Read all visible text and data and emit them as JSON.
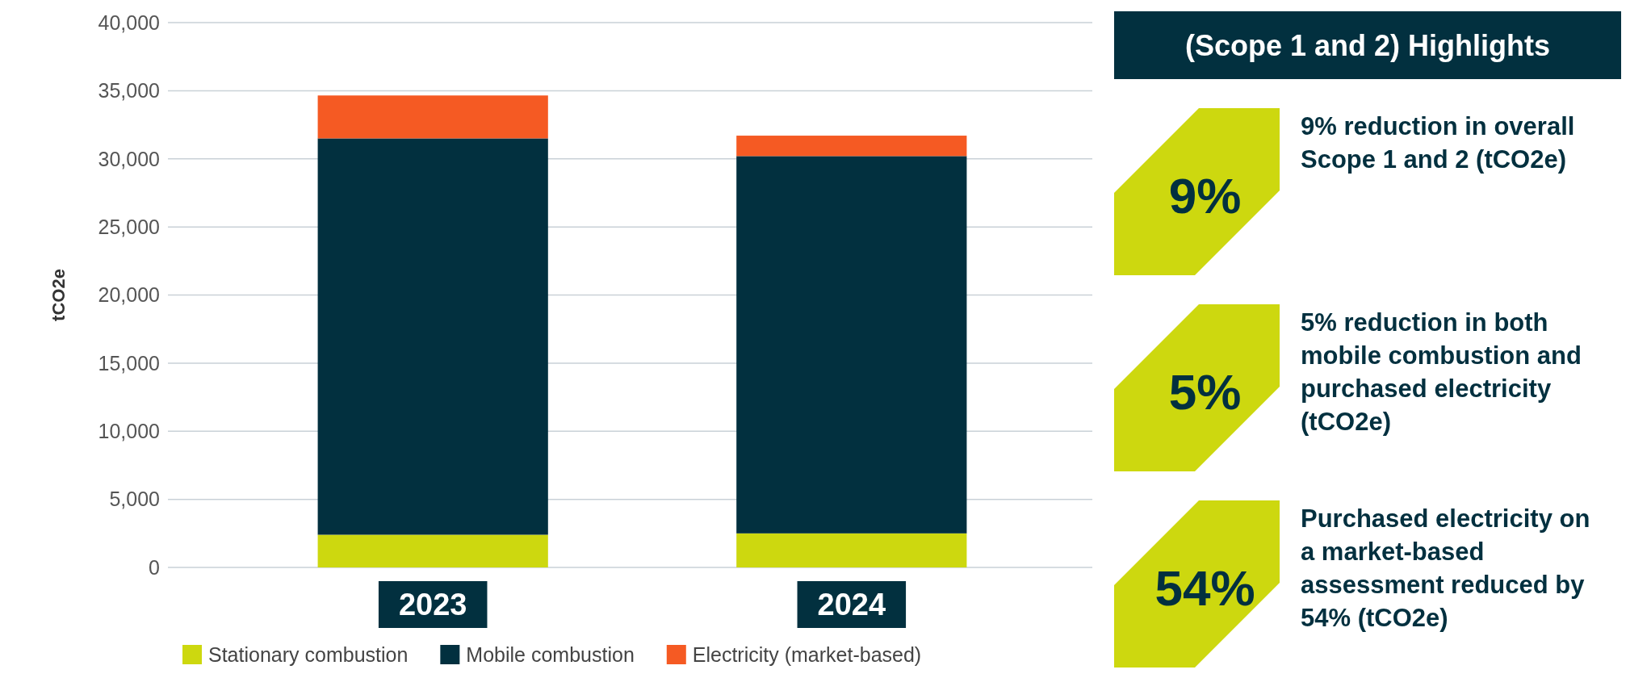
{
  "chart_data": [
    {
      "type": "bar",
      "stacked": true,
      "ylabel": "tCO2e",
      "categories": [
        "2023",
        "2024"
      ],
      "series": [
        {
          "name": "Stationary combustion",
          "color": "#cdd80f",
          "values": [
            2400,
            2500
          ]
        },
        {
          "name": "Mobile combustion",
          "color": "#02303f",
          "values": [
            29100,
            27700
          ]
        },
        {
          "name": "Electricity (market-based)",
          "color": "#f55a23",
          "values": [
            3150,
            1500
          ]
        }
      ],
      "ylim": [
        0,
        40000
      ],
      "yticks": [
        {
          "value": 0,
          "label": "0"
        },
        {
          "value": 5000,
          "label": "5,000"
        },
        {
          "value": 10000,
          "label": "10,000"
        },
        {
          "value": 15000,
          "label": "15,000"
        },
        {
          "value": 20000,
          "label": "20,000"
        },
        {
          "value": 25000,
          "label": "25,000"
        },
        {
          "value": 30000,
          "label": "30,000"
        },
        {
          "value": 35000,
          "label": "35,000"
        },
        {
          "value": 40000,
          "label": "40,000"
        }
      ],
      "grid": "y",
      "legend": "bottom"
    },
    {
      "type": "other",
      "title": "(Scope 1 and 2) Highlights",
      "annotations": [
        "9%",
        "9% reduction in overall Scope 1 and 2 (tCO2e)",
        "5%",
        "5% reduction in both mobile combustion and purchased electricity (tCO2e)",
        "54%",
        "Purchased electricity on a market-based assessment reduced by 54% (tCO2e)"
      ]
    }
  ]
}
